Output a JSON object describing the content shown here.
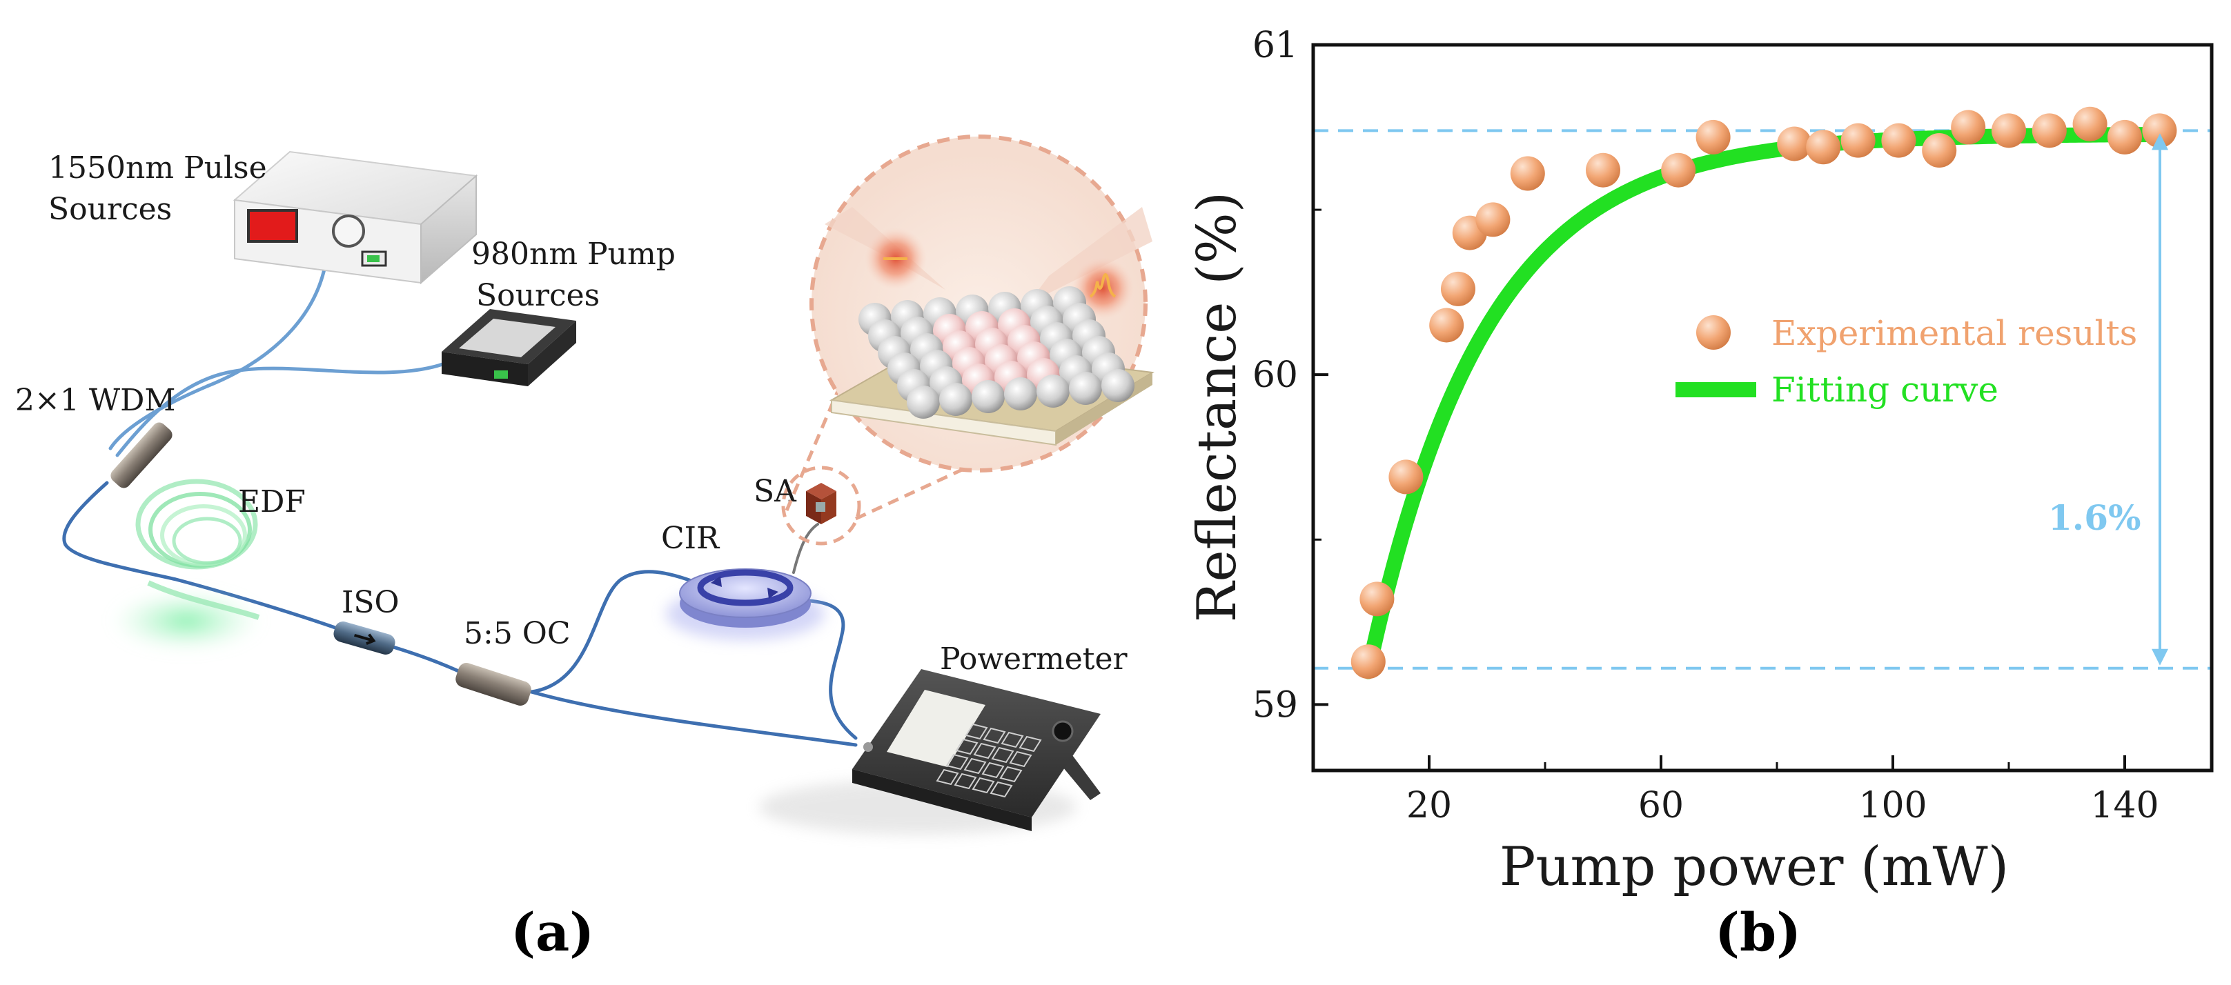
{
  "diagram": {
    "labels": {
      "pulse_source": [
        "1550nm Pulse",
        "Sources"
      ],
      "pump_source": [
        "980nm Pump",
        "Sources"
      ],
      "wdm": "2×1 WDM",
      "edf": "EDF",
      "iso": "ISO",
      "oc": "5:5 OC",
      "cir": "CIR",
      "sa": "SA",
      "powermeter": "Powermeter"
    },
    "panel_label": "(a)"
  },
  "chart_data": {
    "type": "scatter",
    "panel_label": "(b)",
    "xlabel": "Pump power (mW)",
    "ylabel": "Reflectance (%)",
    "xlim": [
      0,
      155
    ],
    "ylim": [
      58.8,
      61.0
    ],
    "xticks": [
      20,
      60,
      100,
      140
    ],
    "yticks": [
      59,
      60,
      61
    ],
    "series": [
      {
        "name": "Experimental results",
        "kind": "scatter",
        "color": "#f0a26f",
        "x": [
          9.5,
          11,
          16,
          23,
          25,
          27,
          31,
          37,
          50,
          63,
          69,
          83,
          88,
          94,
          101,
          108,
          113,
          120,
          127,
          134,
          140,
          146
        ],
        "y": [
          59.13,
          59.32,
          59.69,
          60.15,
          60.26,
          60.43,
          60.47,
          60.61,
          60.62,
          60.62,
          60.72,
          60.7,
          60.69,
          60.71,
          60.71,
          60.68,
          60.75,
          60.74,
          60.74,
          60.76,
          60.72,
          60.74
        ]
      },
      {
        "name": "Fitting curve",
        "kind": "line",
        "color": "#22e022",
        "model": {
          "y0": 60.73,
          "A": 1.63,
          "x0": 9.5,
          "tau": 20
        }
      }
    ],
    "reference_lines": {
      "upper": 60.74,
      "lower": 59.11,
      "color": "#7fc8f0"
    },
    "annotation": {
      "text": "1.6%",
      "color": "#7fc8f0"
    }
  }
}
